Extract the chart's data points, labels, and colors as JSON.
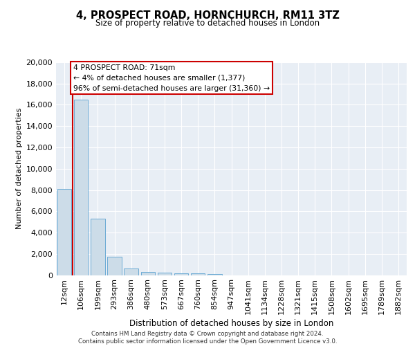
{
  "title": "4, PROSPECT ROAD, HORNCHURCH, RM11 3TZ",
  "subtitle": "Size of property relative to detached houses in London",
  "xlabel": "Distribution of detached houses by size in London",
  "ylabel": "Number of detached properties",
  "bar_color": "#ccdce8",
  "bar_edge_color": "#6aaad4",
  "categories": [
    "12sqm",
    "106sqm",
    "199sqm",
    "293sqm",
    "386sqm",
    "480sqm",
    "573sqm",
    "667sqm",
    "760sqm",
    "854sqm",
    "947sqm",
    "1041sqm",
    "1134sqm",
    "1228sqm",
    "1321sqm",
    "1415sqm",
    "1508sqm",
    "1602sqm",
    "1695sqm",
    "1789sqm",
    "1882sqm"
  ],
  "values": [
    8100,
    16500,
    5300,
    1750,
    650,
    300,
    200,
    180,
    170,
    100,
    0,
    0,
    0,
    0,
    0,
    0,
    0,
    0,
    0,
    0,
    0
  ],
  "ylim": [
    0,
    20000
  ],
  "yticks": [
    0,
    2000,
    4000,
    6000,
    8000,
    10000,
    12000,
    14000,
    16000,
    18000,
    20000
  ],
  "property_label": "4 PROSPECT ROAD: 71sqm",
  "annotation_line1": "← 4% of detached houses are smaller (1,377)",
  "annotation_line2": "96% of semi-detached houses are larger (31,360) →",
  "footnote1": "Contains HM Land Registry data © Crown copyright and database right 2024.",
  "footnote2": "Contains public sector information licensed under the Open Government Licence v3.0.",
  "bg_color": "#e8eef5",
  "grid_color": "#ffffff",
  "red_line_color": "#cc0000",
  "box_edge_color": "#cc0000",
  "red_line_x": 0.5
}
